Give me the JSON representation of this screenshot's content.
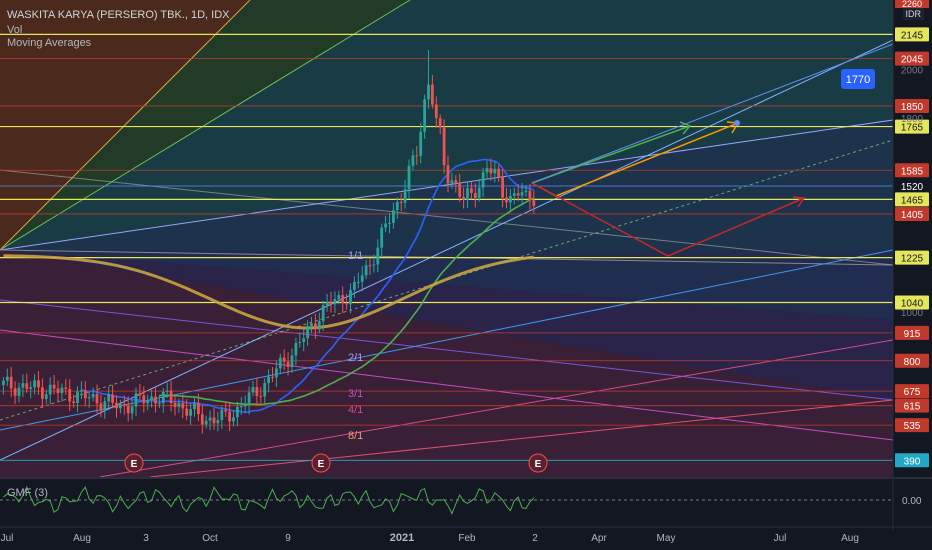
{
  "header": {
    "title": "WASKITA KARYA (PERSERO) TBK., 1D, IDX",
    "vol": "Vol",
    "moving_averages": "Moving Averages",
    "currency": "IDR"
  },
  "gmf": {
    "label": "GMF (3)",
    "value": "0.00"
  },
  "colors": {
    "bg": "#131722",
    "up": "#26a69a",
    "down": "#ef5350",
    "sma20": "#2962ff",
    "sma50": "#4caf50",
    "sma200": "#c8a440",
    "green_arrow": "#4caf50",
    "orange_arrow": "#ff9800",
    "red_arrow": "#c62828",
    "line_yellow": "#e6e65c",
    "line_red": "#c0392b",
    "line_blue": "#5b8ff0"
  },
  "chart_data": {
    "type": "candlestick",
    "title": "WASKITA KARYA (PERSERO) TBK., 1D, IDX",
    "x_ticks": [
      "Jul",
      "Aug",
      "3",
      "Oct",
      "9",
      "2021",
      "Feb",
      "2",
      "Apr",
      "May",
      "Jul",
      "Aug"
    ],
    "y_ticks": [
      1000,
      1800,
      2000
    ],
    "ylim": [
      350,
      2270
    ],
    "horizontal_levels": [
      {
        "value": 2145,
        "label": "2145",
        "color": "#e6e65c"
      },
      {
        "value": 2045,
        "label": "2045",
        "color": "#c0392b"
      },
      {
        "value": 1850,
        "label": "1850",
        "color": "#c0392b"
      },
      {
        "value": 1765,
        "label": "1765",
        "color": "#e6e65c"
      },
      {
        "value": 1585,
        "label": "1585",
        "color": "#c0392b"
      },
      {
        "value": 1520,
        "label": "1520",
        "color": "#131722"
      },
      {
        "value": 1465,
        "label": "1465",
        "color": "#e6e65c"
      },
      {
        "value": 1405,
        "label": "1405",
        "color": "#c0392b"
      },
      {
        "value": 1225,
        "label": "1225",
        "color": "#e6e65c"
      },
      {
        "value": 1040,
        "label": "1040",
        "color": "#e6e65c"
      },
      {
        "value": 915,
        "label": "915",
        "color": "#c0392b"
      },
      {
        "value": 800,
        "label": "800",
        "color": "#c0392b"
      },
      {
        "value": 675,
        "label": "675",
        "color": "#c0392b"
      },
      {
        "value": 615,
        "label": "615",
        "color": "#c0392b"
      },
      {
        "value": 535,
        "label": "535",
        "color": "#c0392b"
      },
      {
        "value": 390,
        "label": "390",
        "color": "#22a8c4"
      }
    ],
    "top_cut_label": "2260",
    "target_label": "1770",
    "gann_labels": [
      "1/1",
      "2/1",
      "3/1",
      "4/1",
      "8/1"
    ],
    "earnings_markers": [
      "E",
      "E",
      "E"
    ],
    "price_path": [
      [
        0,
        700
      ],
      [
        6,
        690
      ],
      [
        12,
        680
      ],
      [
        18,
        660
      ],
      [
        24,
        640
      ],
      [
        30,
        610
      ],
      [
        36,
        640
      ],
      [
        40,
        650
      ],
      [
        44,
        630
      ],
      [
        48,
        590
      ],
      [
        52,
        560
      ],
      [
        56,
        560
      ],
      [
        60,
        600
      ],
      [
        64,
        660
      ],
      [
        68,
        720
      ],
      [
        72,
        800
      ],
      [
        75,
        850
      ],
      [
        78,
        920
      ],
      [
        81,
        990
      ],
      [
        84,
        1040
      ],
      [
        87,
        1060
      ],
      [
        90,
        1090
      ],
      [
        92,
        1160
      ],
      [
        94,
        1200
      ],
      [
        96,
        1270
      ],
      [
        98,
        1350
      ],
      [
        100,
        1420
      ],
      [
        102,
        1480
      ],
      [
        104,
        1570
      ],
      [
        106,
        1660
      ],
      [
        107,
        1760
      ],
      [
        108,
        1870
      ],
      [
        109,
        1950
      ],
      [
        110,
        1880
      ],
      [
        111,
        1780
      ],
      [
        112,
        1720
      ],
      [
        113,
        1610
      ],
      [
        114,
        1560
      ],
      [
        116,
        1530
      ],
      [
        118,
        1460
      ],
      [
        120,
        1480
      ],
      [
        122,
        1530
      ],
      [
        124,
        1600
      ],
      [
        126,
        1560
      ],
      [
        128,
        1500
      ],
      [
        130,
        1470
      ],
      [
        132,
        1490
      ],
      [
        134,
        1470
      ],
      [
        136,
        1480
      ]
    ]
  }
}
